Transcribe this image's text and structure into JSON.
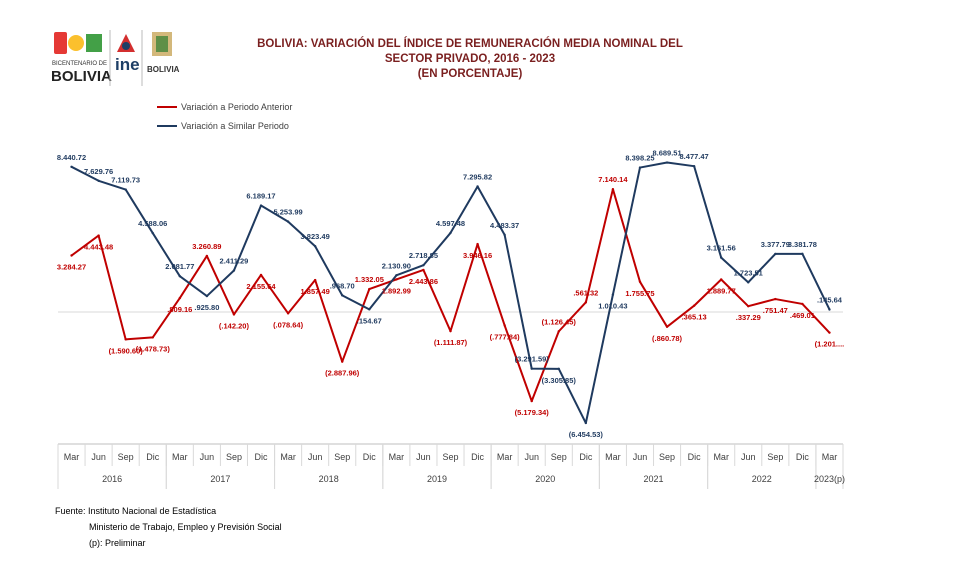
{
  "header": {
    "title_lines": [
      "BOLIVIA: VARIACIÓN DEL ÍNDICE DE REMUNERACIÓN MEDIA NOMINAL DEL",
      "SECTOR PRIVADO, 2016 - 2023",
      "(EN PORCENTAJE)"
    ],
    "logos": {
      "bicentenario_top": "BICENTENARIO DE",
      "bicentenario_main": "BOLIVIA",
      "ine": "ine",
      "bolivia_small": "BOLIVIA"
    }
  },
  "chart_data": {
    "type": "line",
    "categories": [
      "Mar",
      "Jun",
      "Sep",
      "Dic",
      "Mar",
      "Jun",
      "Sep",
      "Dic",
      "Mar",
      "Jun",
      "Sep",
      "Dic",
      "Mar",
      "Jun",
      "Sep",
      "Dic",
      "Mar",
      "Jun",
      "Sep",
      "Dic",
      "Mar",
      "Jun",
      "Sep",
      "Dic",
      "Mar",
      "Jun",
      "Sep",
      "Dic",
      "Mar"
    ],
    "years": [
      {
        "label": "2016",
        "start": 0,
        "end": 3
      },
      {
        "label": "2017",
        "start": 4,
        "end": 7
      },
      {
        "label": "2018",
        "start": 8,
        "end": 11
      },
      {
        "label": "2019",
        "start": 12,
        "end": 15
      },
      {
        "label": "2020",
        "start": 16,
        "end": 19
      },
      {
        "label": "2021",
        "start": 20,
        "end": 23
      },
      {
        "label": "2022",
        "start": 24,
        "end": 27
      },
      {
        "label": "2023(p)",
        "start": 28,
        "end": 28
      }
    ],
    "series": [
      {
        "name": "Variación a Periodo Anterior",
        "color": "#c00000",
        "label_color": "#c00000",
        "values": [
          3.28427,
          4.44348,
          -1.5906,
          -1.47873,
          0.80916,
          3.26089,
          -0.1422,
          2.15564,
          -0.07864,
          1.85749,
          -2.88796,
          1.33205,
          1.89299,
          2.44386,
          -1.11187,
          3.94616,
          -0.77784,
          -5.17934,
          -1.12645,
          0.56132,
          7.14014,
          1.75575,
          -0.86078,
          0.36513,
          1.88977,
          0.33729,
          0.75147,
          0.46901,
          -1.201
        ],
        "labels": [
          "3.284.27",
          "4.443.48",
          "(1.590.60)",
          "(1.478.73)",
          ".809.16",
          "3.260.89",
          "(.142.20)",
          "2.155.64",
          "(.078.64)",
          "1.857.49",
          "(2.887.96)",
          "1.332.05",
          "1.892.99",
          "2.443.86",
          "(1.111.87)",
          "3.946.16",
          "(.777.84)",
          "(5.179.34)",
          "(1.126.45)",
          ".561.32",
          "7.140.14",
          "1.755.75",
          "(.860.78)",
          ".365.13",
          "1.889.77",
          ".337.29",
          ".751.47",
          ".469.01",
          "(1.201...."
        ]
      },
      {
        "name": "Variación a Similar Periodo",
        "color": "#1f3a5f",
        "label_color": "#1f3a5f",
        "values": [
          8.44072,
          7.62976,
          7.11973,
          4.58806,
          2.08177,
          0.9258,
          2.41129,
          6.18917,
          5.25399,
          3.82349,
          0.9687,
          0.15467,
          2.1309,
          2.71885,
          4.59748,
          7.29582,
          4.48337,
          -3.29159,
          -3.30585,
          -6.45453,
          1.01043,
          8.39825,
          8.68951,
          8.47747,
          3.16156,
          1.72351,
          3.37779,
          3.38178,
          0.14564
        ],
        "labels": [
          "8.440.72",
          "7.629.76",
          "7.119.73",
          "4.588.06",
          "2.081.77",
          ".925.80",
          "2.411.29",
          "6.189.17",
          "5.253.99",
          "3.823.49",
          ".968.70",
          ".154.67",
          "2.130.90",
          "2.718.85",
          "4.597.48",
          "7.295.82",
          "4.483.37",
          "(3.291.59)",
          "(3.305.85)",
          "(6.454.53)",
          "1.010.43",
          "8.398.25",
          "8.689.51",
          "8.477.47",
          "3.161.56",
          "1.723.51",
          "3.377.79",
          "3.381.78",
          ".145.64"
        ]
      }
    ],
    "ylim": [
      -9,
      13
    ],
    "grid": false,
    "legend": "top-left"
  },
  "footer": {
    "source": "Fuente: Instituto Nacional de Estadística",
    "ministry": "Ministerio de Trabajo, Empleo y Previsión Social",
    "note": "(p): Preliminar"
  }
}
